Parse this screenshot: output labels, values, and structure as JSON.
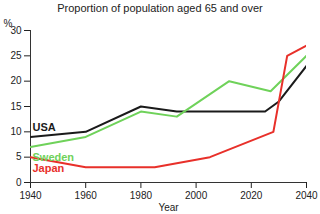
{
  "chart_data": {
    "type": "line",
    "title": "Proportion of population aged 65 and over",
    "x_label": "Year",
    "y_label": "%",
    "series": [
      {
        "name": "USA",
        "color": "#1a1a1a",
        "x": [
          1940,
          1960,
          1980,
          1993,
          2025,
          2030,
          2040
        ],
        "values": [
          9,
          10,
          15,
          14,
          14,
          16,
          23
        ]
      },
      {
        "name": "Sweden",
        "color": "#6fd25a",
        "x": [
          1940,
          1960,
          1980,
          1993,
          2012,
          2027,
          2040
        ],
        "values": [
          7,
          9,
          14,
          13,
          20,
          18,
          25
        ]
      },
      {
        "name": "Japan",
        "color": "#e8302a",
        "x": [
          1940,
          1960,
          1985,
          2005,
          2028,
          2033,
          2040
        ],
        "values": [
          5,
          3,
          3,
          5,
          10,
          25,
          27
        ]
      }
    ],
    "xlim": [
      1940,
      2040
    ],
    "xticks": [
      1940,
      1960,
      1980,
      2000,
      2020,
      2040
    ],
    "ylim": [
      0,
      30
    ],
    "yticks": [
      0,
      5,
      10,
      15,
      20,
      25,
      30
    ],
    "grid": false
  }
}
